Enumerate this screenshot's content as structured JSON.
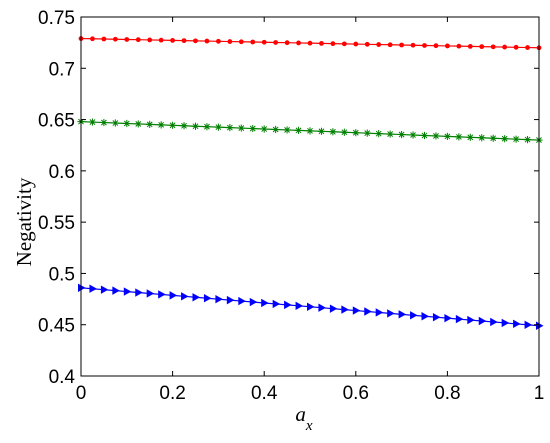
{
  "chart_data": {
    "type": "line",
    "title": "",
    "xlabel_main": "a",
    "xlabel_sub": "x",
    "ylabel": "Negativity",
    "xlim": [
      0,
      1
    ],
    "ylim": [
      0.4,
      0.75
    ],
    "x_ticks": [
      "0",
      "0.2",
      "0.4",
      "0.6",
      "0.8",
      "1"
    ],
    "y_ticks": [
      "0.4",
      "0.45",
      "0.5",
      "0.55",
      "0.6",
      "0.65",
      "0.7",
      "0.75"
    ],
    "grid": false,
    "legend": "none",
    "series": [
      {
        "color": "#ff0000",
        "marker": "dot",
        "start": 0.729,
        "end": 0.72,
        "points": 41
      },
      {
        "color": "#008000",
        "marker": "asterisk",
        "start": 0.648,
        "end": 0.63,
        "points": 41
      },
      {
        "color": "#0000ff",
        "marker": "triangle-right",
        "start": 0.486,
        "end": 0.449,
        "points": 41
      }
    ]
  }
}
